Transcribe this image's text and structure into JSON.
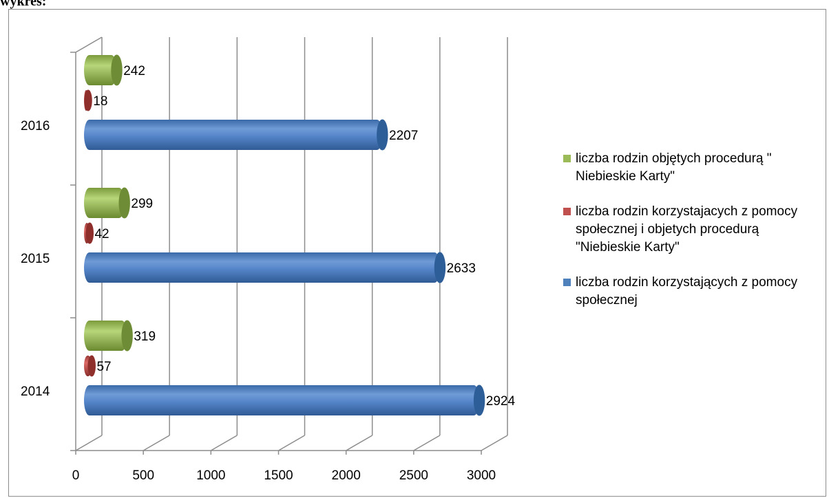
{
  "page": {
    "top_title": "wykres:"
  },
  "chart_data": {
    "type": "bar",
    "orientation": "horizontal",
    "style": "3d-cylinder",
    "categories": [
      "2014",
      "2015",
      "2016"
    ],
    "series": [
      {
        "name": "liczba rodzin korzystających z pomocy społecznej",
        "color": "#4f81bd",
        "values": [
          2924,
          2633,
          2207
        ]
      },
      {
        "name": "liczba rodzin korzystajacych z pomocy społecznej  i objetych procedurą \"Niebieskie Karty\"",
        "color": "#c0504d",
        "values": [
          57,
          42,
          18
        ]
      },
      {
        "name": "liczba rodzin objętych procedurą \" Niebieskie Karty\"",
        "color": "#9bbb59",
        "values": [
          319,
          299,
          242
        ]
      }
    ],
    "x_ticks": [
      "0",
      "500",
      "1000",
      "1500",
      "2000",
      "2500",
      "3000"
    ],
    "xlim": [
      0,
      3000
    ],
    "grid": true,
    "legend_position": "right",
    "legend_order": [
      2,
      1,
      0
    ]
  }
}
